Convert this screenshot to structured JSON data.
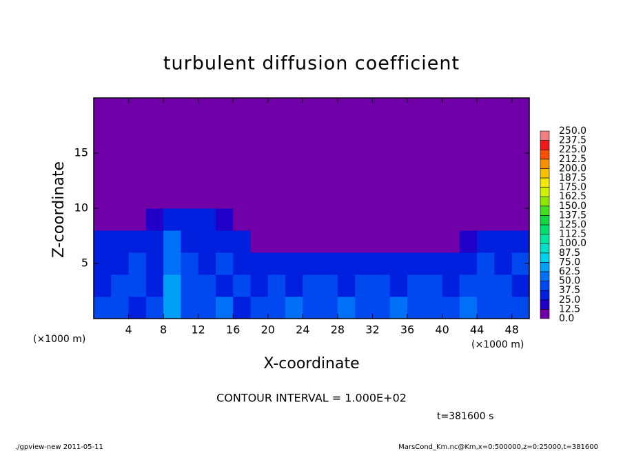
{
  "chart_data": {
    "type": "heatmap",
    "title": "turbulent diffusion coefficient",
    "xlabel": "X-coordinate",
    "ylabel": "Z-coordinate",
    "x_unit_left": "(×1000 m)",
    "x_unit_right": "(×1000 m)",
    "contour_note": "CONTOUR INTERVAL = 1.000E+02",
    "time_note": "t=381600 s",
    "footer_left": "./gpview-new   2011-05-11",
    "footer_right": "MarsCond_Km.nc@Km,x=0:500000,z=0:25000,t=381600",
    "xlim": [
      0,
      50
    ],
    "ylim": [
      0,
      20
    ],
    "xticks": [
      4,
      8,
      12,
      16,
      20,
      24,
      28,
      32,
      36,
      40,
      44,
      48
    ],
    "yticks": [
      5,
      10,
      15
    ],
    "x": [
      1,
      3,
      5,
      7,
      9,
      11,
      13,
      15,
      17,
      19,
      21,
      23,
      25,
      27,
      29,
      31,
      33,
      35,
      37,
      39,
      41,
      43,
      45,
      47,
      49
    ],
    "y": [
      1,
      3,
      5,
      7,
      9,
      11,
      13,
      15,
      17,
      19
    ],
    "values": [
      [
        40,
        45,
        35,
        40,
        70,
        40,
        45,
        50,
        35,
        40,
        45,
        55,
        40,
        45,
        50,
        45,
        40,
        50,
        45,
        40,
        45,
        50,
        45,
        40,
        45
      ],
      [
        35,
        40,
        45,
        35,
        65,
        45,
        40,
        35,
        45,
        30,
        40,
        35,
        45,
        40,
        35,
        45,
        40,
        35,
        45,
        40,
        35,
        40,
        45,
        40,
        35
      ],
      [
        35,
        30,
        40,
        35,
        60,
        40,
        35,
        40,
        30,
        25,
        30,
        35,
        25,
        30,
        35,
        25,
        30,
        35,
        25,
        30,
        35,
        30,
        40,
        35,
        40
      ],
      [
        30,
        35,
        30,
        35,
        50,
        35,
        30,
        35,
        25,
        10,
        5,
        5,
        5,
        5,
        5,
        5,
        5,
        5,
        5,
        5,
        10,
        20,
        30,
        35,
        30
      ],
      [
        0,
        0,
        5,
        20,
        30,
        25,
        25,
        20,
        5,
        0,
        0,
        0,
        0,
        0,
        0,
        0,
        0,
        0,
        0,
        0,
        0,
        0,
        0,
        0,
        0
      ],
      [
        0,
        0,
        0,
        0,
        0,
        0,
        0,
        0,
        0,
        0,
        0,
        0,
        0,
        0,
        0,
        0,
        0,
        0,
        0,
        0,
        0,
        0,
        0,
        0,
        0
      ],
      [
        0,
        0,
        0,
        0,
        0,
        0,
        0,
        0,
        0,
        0,
        0,
        0,
        0,
        0,
        0,
        0,
        0,
        0,
        0,
        0,
        0,
        0,
        0,
        0,
        0
      ],
      [
        0,
        0,
        0,
        0,
        0,
        0,
        0,
        0,
        0,
        0,
        0,
        0,
        0,
        0,
        0,
        0,
        0,
        0,
        0,
        0,
        0,
        0,
        0,
        0,
        0
      ],
      [
        0,
        0,
        0,
        0,
        0,
        0,
        0,
        0,
        0,
        0,
        0,
        0,
        0,
        0,
        0,
        0,
        0,
        0,
        0,
        0,
        0,
        0,
        0,
        0,
        0
      ],
      [
        0,
        0,
        0,
        0,
        0,
        0,
        0,
        0,
        0,
        0,
        0,
        0,
        0,
        0,
        0,
        0,
        0,
        0,
        0,
        0,
        0,
        0,
        0,
        0,
        0
      ]
    ],
    "levels": [
      {
        "value": 0,
        "label": "0.0"
      },
      12.5,
      {
        "value": 25,
        "label": "25.0"
      },
      37.5,
      {
        "value": 50,
        "label": "50.0"
      },
      62.5,
      {
        "value": 75,
        "label": "75.0"
      },
      87.5,
      {
        "value": 100,
        "label": "100.0"
      },
      112.5,
      {
        "value": 125,
        "label": "125.0"
      },
      137.5,
      {
        "value": 150,
        "label": "150.0"
      },
      162.5,
      {
        "value": 175,
        "label": "175.0"
      },
      187.5,
      {
        "value": 200,
        "label": "200.0"
      },
      212.5,
      {
        "value": 225,
        "label": "225.0"
      },
      237.5,
      {
        "value": 250,
        "label": "250.0"
      }
    ],
    "colors": [
      "#7000a8",
      "#2000c8",
      "#0020e0",
      "#0048f0",
      "#0070f8",
      "#00a0f8",
      "#00d0f0",
      "#00e0c8",
      "#00e8a0",
      "#00e070",
      "#10d840",
      "#40e020",
      "#90e800",
      "#d0f000",
      "#f0e800",
      "#f8c000",
      "#f89000",
      "#f85000",
      "#f01818",
      "#f08080"
    ]
  }
}
